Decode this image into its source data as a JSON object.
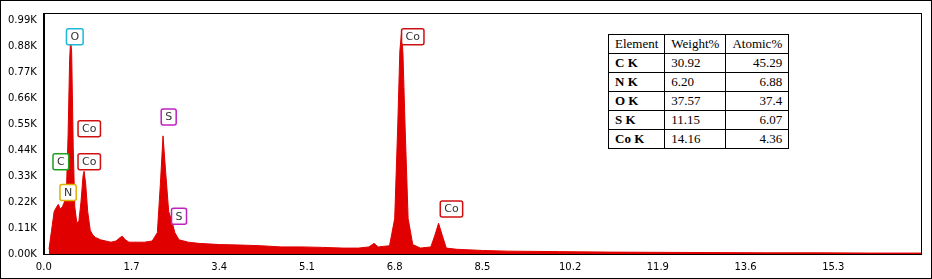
{
  "chart_data": {
    "type": "area",
    "color": "#e00000",
    "grid": false,
    "x": [
      0.1,
      0.15,
      0.2,
      0.25,
      0.28,
      0.32,
      0.36,
      0.4,
      0.44,
      0.47,
      0.5,
      0.52,
      0.54,
      0.57,
      0.6,
      0.64,
      0.68,
      0.72,
      0.76,
      0.78,
      0.81,
      0.85,
      0.9,
      0.95,
      1.0,
      1.1,
      1.2,
      1.3,
      1.4,
      1.48,
      1.52,
      1.58,
      1.65,
      1.8,
      1.95,
      2.1,
      2.2,
      2.26,
      2.31,
      2.36,
      2.42,
      2.48,
      2.54,
      2.62,
      2.8,
      3.0,
      3.4,
      3.8,
      4.2,
      4.6,
      5.0,
      5.4,
      5.8,
      6.1,
      6.3,
      6.4,
      6.48,
      6.7,
      6.8,
      6.86,
      6.9,
      6.93,
      6.96,
      7.0,
      7.06,
      7.15,
      7.3,
      7.5,
      7.58,
      7.65,
      7.72,
      7.8,
      8.0,
      8.5,
      9.0,
      10.0,
      11.0,
      12.0,
      13.0,
      14.0,
      15.0,
      16.0,
      17.0
    ],
    "values": [
      0.02,
      0.1,
      0.18,
      0.2,
      0.21,
      0.19,
      0.2,
      0.22,
      0.28,
      0.5,
      0.82,
      0.91,
      0.85,
      0.45,
      0.2,
      0.13,
      0.14,
      0.22,
      0.33,
      0.35,
      0.3,
      0.18,
      0.1,
      0.08,
      0.07,
      0.06,
      0.055,
      0.05,
      0.055,
      0.07,
      0.075,
      0.06,
      0.05,
      0.05,
      0.05,
      0.055,
      0.09,
      0.3,
      0.5,
      0.35,
      0.18,
      0.14,
      0.09,
      0.06,
      0.05,
      0.045,
      0.04,
      0.038,
      0.035,
      0.03,
      0.03,
      0.028,
      0.025,
      0.025,
      0.03,
      0.045,
      0.03,
      0.035,
      0.15,
      0.55,
      0.86,
      0.93,
      0.85,
      0.55,
      0.15,
      0.04,
      0.025,
      0.03,
      0.08,
      0.13,
      0.08,
      0.025,
      0.02,
      0.015,
      0.012,
      0.01,
      0.008,
      0.007,
      0.006,
      0.005,
      0.005,
      0.004,
      0.004
    ],
    "xlim": [
      0,
      17.0
    ],
    "xticks": [
      {
        "value": 0,
        "label": "0.0"
      },
      1.7,
      3.4,
      5.1,
      6.8,
      8.5,
      10.2,
      11.9,
      13.6,
      15.3
    ],
    "ylim": [
      0,
      1.02
    ],
    "yticks": [
      {
        "value": 0,
        "label": "0.00K"
      },
      {
        "value": 0.11,
        "label": "0.11K"
      },
      {
        "value": 0.22,
        "label": "0.22K"
      },
      {
        "value": 0.33,
        "label": "0.33K"
      },
      {
        "value": 0.44,
        "label": "0.44K"
      },
      {
        "value": 0.55,
        "label": "0.55K"
      },
      {
        "value": 0.66,
        "label": "0.66K"
      },
      {
        "value": 0.77,
        "label": "0.77K"
      },
      {
        "value": 0.88,
        "label": "0.88K"
      },
      {
        "value": 0.99,
        "label": "0.99K"
      }
    ],
    "annotations": [
      {
        "text": "O",
        "x": 0.6,
        "y": 0.92,
        "color": "#20b8d8"
      },
      {
        "text": "Co",
        "x": 0.88,
        "y": 0.53,
        "color": "#d01010"
      },
      {
        "text": "Co",
        "x": 0.88,
        "y": 0.39,
        "color": "#d01010"
      },
      {
        "text": "C",
        "x": 0.33,
        "y": 0.39,
        "color": "#20a020"
      },
      {
        "text": "N",
        "x": 0.47,
        "y": 0.26,
        "color": "#e0b000"
      },
      {
        "text": "S",
        "x": 2.42,
        "y": 0.58,
        "color": "#c020c0"
      },
      {
        "text": "S",
        "x": 2.62,
        "y": 0.16,
        "color": "#c020c0"
      },
      {
        "text": "Co",
        "x": 7.15,
        "y": 0.92,
        "color": "#d01010"
      },
      {
        "text": "Co",
        "x": 7.9,
        "y": 0.19,
        "color": "#d01010"
      }
    ]
  },
  "table": {
    "header": [
      "Element",
      "Weight%",
      "Atomic%"
    ],
    "rows": [
      [
        "C K",
        "30.92",
        "45.29"
      ],
      [
        "N K",
        "6.20",
        "6.88"
      ],
      [
        "O K",
        "37.57",
        "37.4"
      ],
      [
        "S K",
        "11.15",
        "6.07"
      ],
      [
        "Co K",
        "14.16",
        "4.36"
      ]
    ]
  }
}
